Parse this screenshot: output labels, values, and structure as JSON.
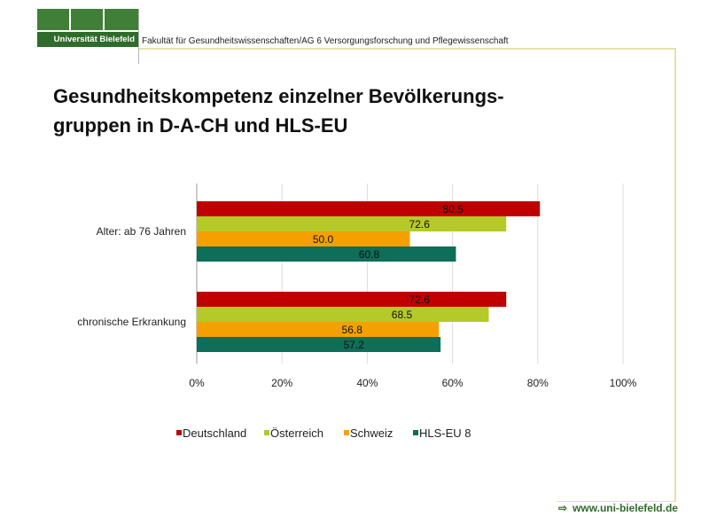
{
  "header": {
    "logo_text": "Universität Bielefeld",
    "faculty": "Fakultät für Gesundheitswissenschaften/AG 6 Versorgungsforschung und Pflegewissenschaft"
  },
  "slide": {
    "title_line1": "Gesundheitskompetenz einzelner Bevölkerungs-",
    "title_line2": "gruppen in D-A-CH und HLS-EU"
  },
  "footer": {
    "url": "www.uni-bielefeld.de",
    "arrow": "⇨"
  },
  "colors": {
    "Deutschland": "#c00000",
    "Österreich": "#b5c929",
    "Schweiz": "#f5a000",
    "HLS-EU 8": "#0d6e5a"
  },
  "chart_data": {
    "type": "bar",
    "orientation": "horizontal",
    "categories": [
      "Alter: ab 76 Jahren",
      "chronische Erkrankung"
    ],
    "series": [
      {
        "name": "Deutschland",
        "values": [
          80.5,
          72.6
        ],
        "labels": [
          "80.5",
          "72.6"
        ]
      },
      {
        "name": "Österreich",
        "values": [
          72.6,
          68.5
        ],
        "labels": [
          "72.6",
          "68.5"
        ]
      },
      {
        "name": "Schweiz",
        "values": [
          50.0,
          56.8
        ],
        "labels": [
          "50.0",
          "56.8"
        ]
      },
      {
        "name": "HLS-EU 8",
        "values": [
          60.8,
          57.2
        ],
        "labels": [
          "60.8",
          "57.2"
        ]
      }
    ],
    "xlim": [
      0,
      100
    ],
    "ticks": [
      "0%",
      "20%",
      "40%",
      "60%",
      "80%",
      "100%"
    ],
    "grid": true,
    "legend": "bottom"
  }
}
